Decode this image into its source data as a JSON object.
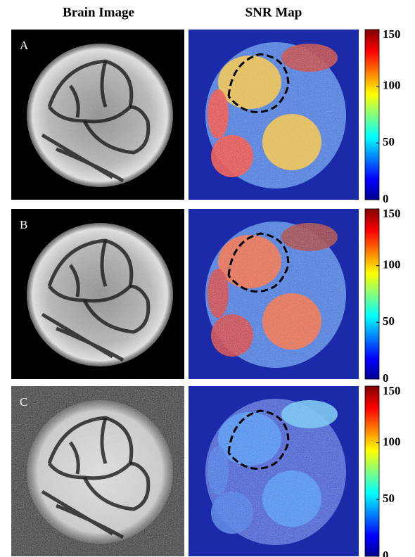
{
  "columns": [
    "Brain Image",
    "SNR Map"
  ],
  "panels": [
    {
      "label": "A",
      "colorbar": {
        "lim": [
          0,
          150
        ],
        "ticks": [
          0,
          50,
          100,
          150
        ]
      }
    },
    {
      "label": "B",
      "colorbar": {
        "lim": [
          0,
          150
        ],
        "ticks": [
          0,
          50,
          100,
          150
        ]
      }
    },
    {
      "label": "C",
      "colorbar": {
        "lim": [
          0,
          150
        ],
        "ticks": [
          0,
          50,
          100,
          150
        ]
      }
    }
  ]
}
